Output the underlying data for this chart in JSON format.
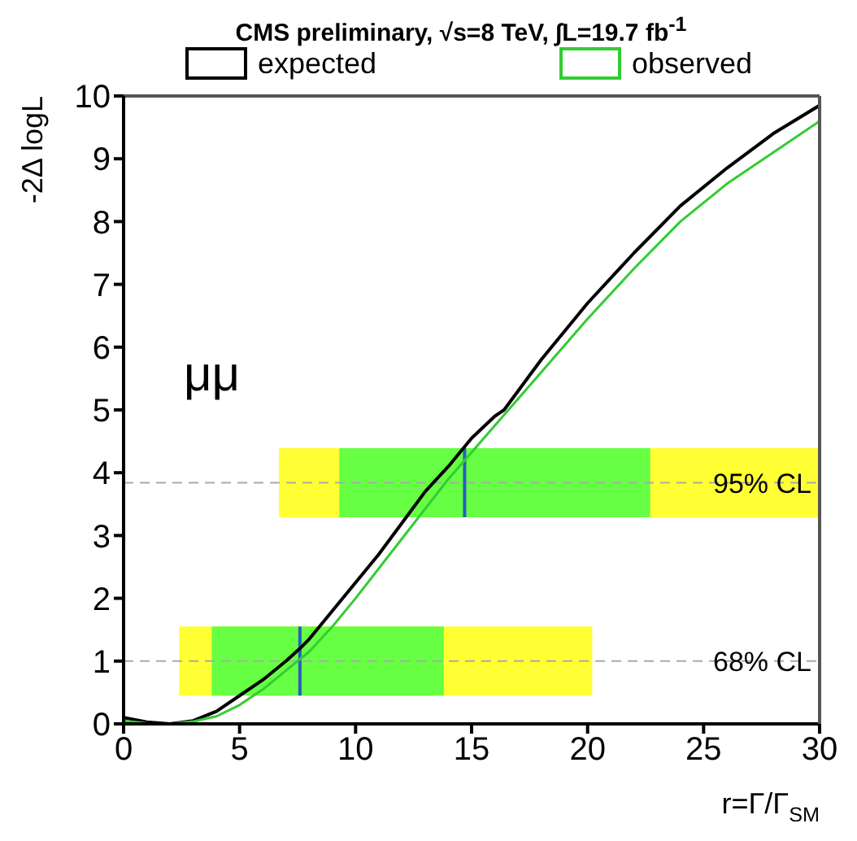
{
  "chart_data": {
    "type": "line",
    "title": "CMS preliminary, √s=8 TeV, ∫L=19.7 fb$^{-1}$",
    "xlabel": "r=Γ/Γ$_{SM}$",
    "ylabel": "-2Δ logL",
    "annotations": [
      "μμ"
    ],
    "series": [
      {
        "name": "expected",
        "color": "#000000",
        "x": [
          0,
          1,
          2,
          3,
          4,
          5,
          6,
          7,
          7.6,
          8,
          9,
          10,
          11,
          12,
          13,
          14,
          15,
          16,
          16.4,
          18,
          20,
          22,
          24,
          26,
          28,
          30
        ],
        "values": [
          0.1,
          0.03,
          0,
          0.05,
          0.2,
          0.45,
          0.7,
          1.0,
          1.2,
          1.35,
          1.8,
          2.25,
          2.7,
          3.2,
          3.7,
          4.1,
          4.55,
          4.9,
          5.0,
          5.8,
          6.7,
          7.5,
          8.25,
          8.85,
          9.4,
          9.85
        ]
      },
      {
        "name": "observed",
        "color": "#33cc33",
        "x": [
          0,
          1,
          2,
          3,
          4,
          5,
          6,
          7,
          8,
          9,
          10,
          12,
          14,
          16,
          18,
          20,
          22,
          24,
          26,
          28,
          30
        ],
        "values": [
          0.05,
          0.01,
          0,
          0.04,
          0.12,
          0.3,
          0.55,
          0.85,
          1.15,
          1.55,
          2.0,
          2.95,
          3.9,
          4.75,
          5.6,
          6.45,
          7.25,
          8.0,
          8.6,
          9.1,
          9.6
        ]
      }
    ],
    "xlim": [
      0,
      30
    ],
    "xticks": [
      0,
      5,
      10,
      15,
      20,
      25,
      30
    ],
    "ylim": [
      0,
      10
    ],
    "yticks": [
      0,
      1,
      2,
      3,
      4,
      5,
      6,
      7,
      8,
      9,
      10
    ],
    "ref_lines": [
      {
        "axis": "y",
        "value": 1,
        "label": "68% CL",
        "color": "#aaaaaa",
        "line_style": "dashed"
      },
      {
        "axis": "y",
        "value": 3.84,
        "label": "95% CL",
        "color": "#aaaaaa",
        "line_style": "dashed"
      },
      {
        "axis": "x",
        "value": 7.6,
        "color": "#2a5dbf"
      },
      {
        "axis": "x",
        "value": 14.7,
        "color": "#2a5dbf"
      }
    ],
    "bands": [
      {
        "axis": "x",
        "from": 2.4,
        "to": 20.2,
        "color": "#ffff33"
      },
      {
        "axis": "x",
        "from": 3.8,
        "to": 13.8,
        "color": "#66ff44"
      },
      {
        "axis": "x",
        "from": 6.7,
        "to": 30,
        "color": "#ffff33"
      },
      {
        "axis": "x",
        "from": 9.3,
        "to": 22.7,
        "color": "#66ff44"
      }
    ],
    "legend": "top",
    "grid": false,
    "marker": "none",
    "line_style": "solid"
  }
}
